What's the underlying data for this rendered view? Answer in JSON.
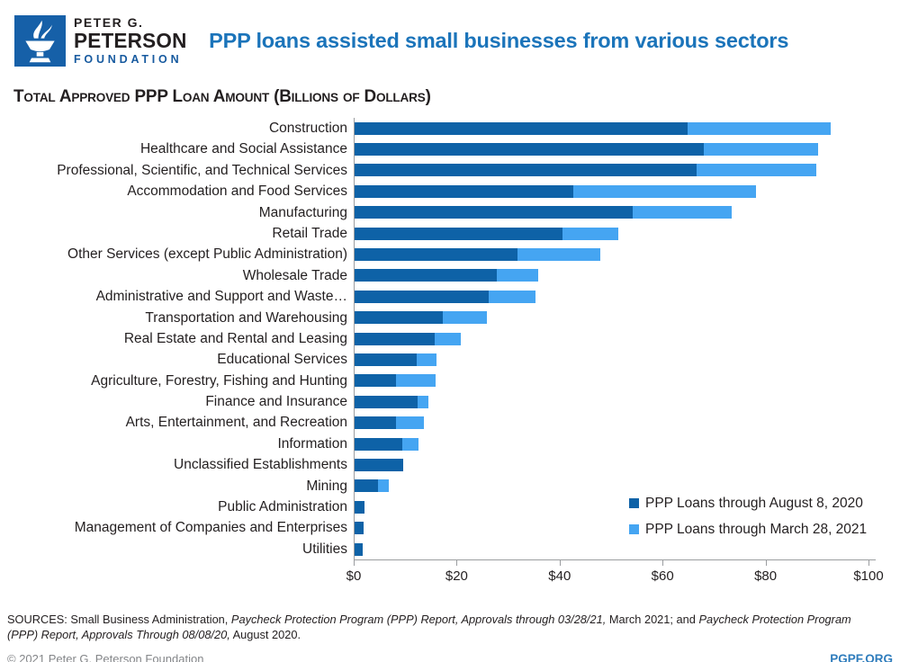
{
  "header": {
    "logo": {
      "line1": "PETER G.",
      "line2": "PETERSON",
      "line3": "FOUNDATION",
      "square_color": "#1660a8"
    },
    "title": "PPP loans assisted small businesses from various sectors",
    "title_color": "#1b74ba"
  },
  "chart_data": {
    "type": "bar",
    "orientation": "horizontal",
    "title": "Total Approved PPP Loan Amount (Billions of Dollars)",
    "unit": "billions of dollars",
    "categories": [
      "Construction",
      "Healthcare and Social Assistance",
      "Professional, Scientific, and Technical Services",
      "Accommodation and Food Services",
      "Manufacturing",
      "Retail Trade",
      "Other Services (except Public Administration)",
      "Wholesale Trade",
      "Administrative and Support and Waste…",
      "Transportation and Warehousing",
      "Real Estate and Rental and Leasing",
      "Educational Services",
      "Agriculture, Forestry, Fishing and Hunting",
      "Finance and Insurance",
      "Arts, Entertainment, and Recreation",
      "Information",
      "Unclassified Establishments",
      "Mining",
      "Public Administration",
      "Management of Companies and Enterprises",
      "Utilities"
    ],
    "series": [
      {
        "name": "PPP Loans through August 8, 2020",
        "color": "#0e62a7",
        "values": [
          64.6,
          67.8,
          66.4,
          42.5,
          54.0,
          40.4,
          31.7,
          27.6,
          26.1,
          17.2,
          15.6,
          12.1,
          8.0,
          12.2,
          8.1,
          9.2,
          9.4,
          4.5,
          2.0,
          1.7,
          1.5
        ]
      },
      {
        "name": "PPP Loans through March 28, 2021",
        "color": "#45a5f2",
        "values": [
          92.4,
          90.1,
          89.7,
          78.0,
          73.3,
          51.2,
          47.7,
          35.7,
          35.1,
          25.7,
          20.7,
          15.9,
          15.8,
          14.4,
          13.4,
          12.4,
          9.4,
          6.6,
          2.0,
          1.7,
          1.5
        ]
      }
    ],
    "xlim": [
      0,
      100
    ],
    "x_ticks": [
      {
        "label": "$0",
        "value": 0
      },
      {
        "label": "$20",
        "value": 20
      },
      {
        "label": "$40",
        "value": 40
      },
      {
        "label": "$60",
        "value": 60
      },
      {
        "label": "$80",
        "value": 80
      },
      {
        "label": "$100",
        "value": 100
      }
    ],
    "grid": false,
    "legend_position": "inside bottom-right",
    "bar_style": "overlaid (2020 bar drawn on top of 2021 bar)"
  },
  "footer": {
    "sources_prefix": "SOURCES: Small Business Administration, ",
    "source1_italic": "Paycheck Protection Program (PPP) Report, Approvals through 03/28/21,",
    "source1_mid": " March 2021; and ",
    "source2_italic": "Paycheck Protection Program (PPP) Report, Approvals Through 08/08/20,",
    "source2_suffix": " August 2020.",
    "copyright": "© 2021 Peter G. Peterson Foundation",
    "site": "PGPF.ORG"
  }
}
